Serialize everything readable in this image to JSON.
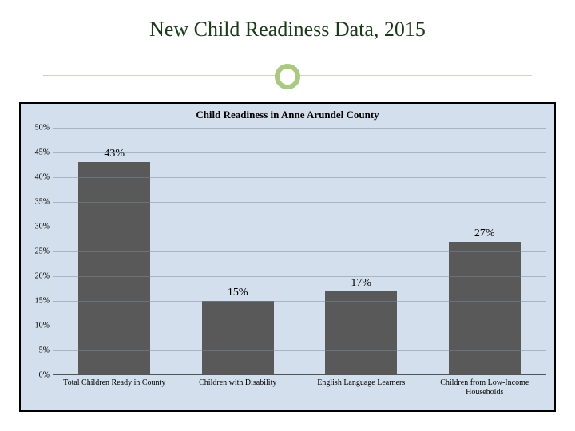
{
  "title": {
    "text": "New Child Readiness Data, 2015",
    "fontsize": 26,
    "color": "#1a3a1a"
  },
  "accent": {
    "rule_color": "#c9d8c0",
    "circle_border": "#a8c97f",
    "circle_fill": "#ffffff"
  },
  "chart": {
    "type": "bar",
    "title": "Child Readiness in Anne Arundel County",
    "title_fontsize": 13,
    "outer_border_color": "#000000",
    "background_color": "#b0c4de",
    "background_opacity": 0.55,
    "grid_color": "#7a8aa0",
    "axis_color": "#555555",
    "bar_color": "#595959",
    "bar_width": 0.58,
    "value_fontsize": 14,
    "ylim": [
      0,
      50
    ],
    "ytick_step": 5,
    "yticks": [
      "0%",
      "5%",
      "10%",
      "15%",
      "20%",
      "25%",
      "30%",
      "35%",
      "40%",
      "45%",
      "50%"
    ],
    "categories": [
      "Total Children Ready in County",
      "Children with Disability",
      "English Language Learners",
      "Children from Low-Income Households"
    ],
    "values": [
      43,
      15,
      17,
      27
    ],
    "value_labels": [
      "43%",
      "15%",
      "17%",
      "27%"
    ],
    "x_label_fontsize": 10,
    "y_label_fontsize": 10
  }
}
